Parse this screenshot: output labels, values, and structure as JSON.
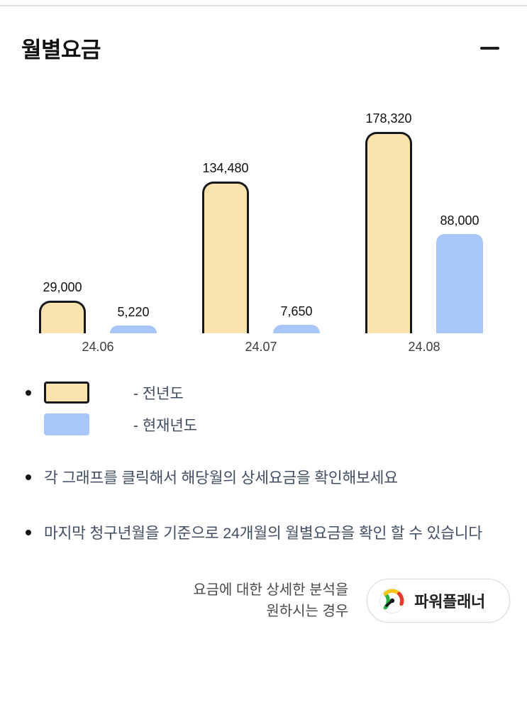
{
  "header": {
    "title": "월별요금"
  },
  "chart_data": {
    "type": "bar",
    "title": "월별요금",
    "categories": [
      "24.06",
      "24.07",
      "24.08"
    ],
    "series": [
      {
        "name": "전년도",
        "values": [
          29000,
          134480,
          178320
        ],
        "labels": [
          "29,000",
          "134,480",
          "178,320"
        ],
        "color": "#FBE3AE",
        "border_color": "#16181d"
      },
      {
        "name": "현재년도",
        "values": [
          5220,
          7650,
          88000
        ],
        "labels": [
          "5,220",
          "7,650",
          "88,000"
        ],
        "color": "#A8C6F8",
        "border_color": null
      }
    ],
    "ylim": [
      0,
      185000
    ],
    "grid": false,
    "legend_position": "below-left",
    "xlabel": "",
    "ylabel": ""
  },
  "legend": [
    {
      "swatch": "prev-year",
      "label": "- 전년도"
    },
    {
      "swatch": "current-year",
      "label": "- 현재년도"
    }
  ],
  "notes": [
    "각 그래프를 클릭해서 해당월의 상세요금을 확인해보세요",
    "마지막 청구년월을 기준으로 24개월의 월별요금을 확인 할 수 있습니다"
  ],
  "footer": {
    "prompt_line1": "요금에 대한 상세한 분석을",
    "prompt_line2": "원하시는 경우",
    "button_label": "파워플래너"
  },
  "icons": {
    "collapse": "minus-icon",
    "button_icon": "gauge-icon"
  },
  "colors": {
    "prev_year_fill": "#FBE3AE",
    "prev_year_border": "#16181d",
    "current_year_fill": "#A8C6F8",
    "note_text": "#414e63",
    "divider": "#dcdcdc"
  }
}
